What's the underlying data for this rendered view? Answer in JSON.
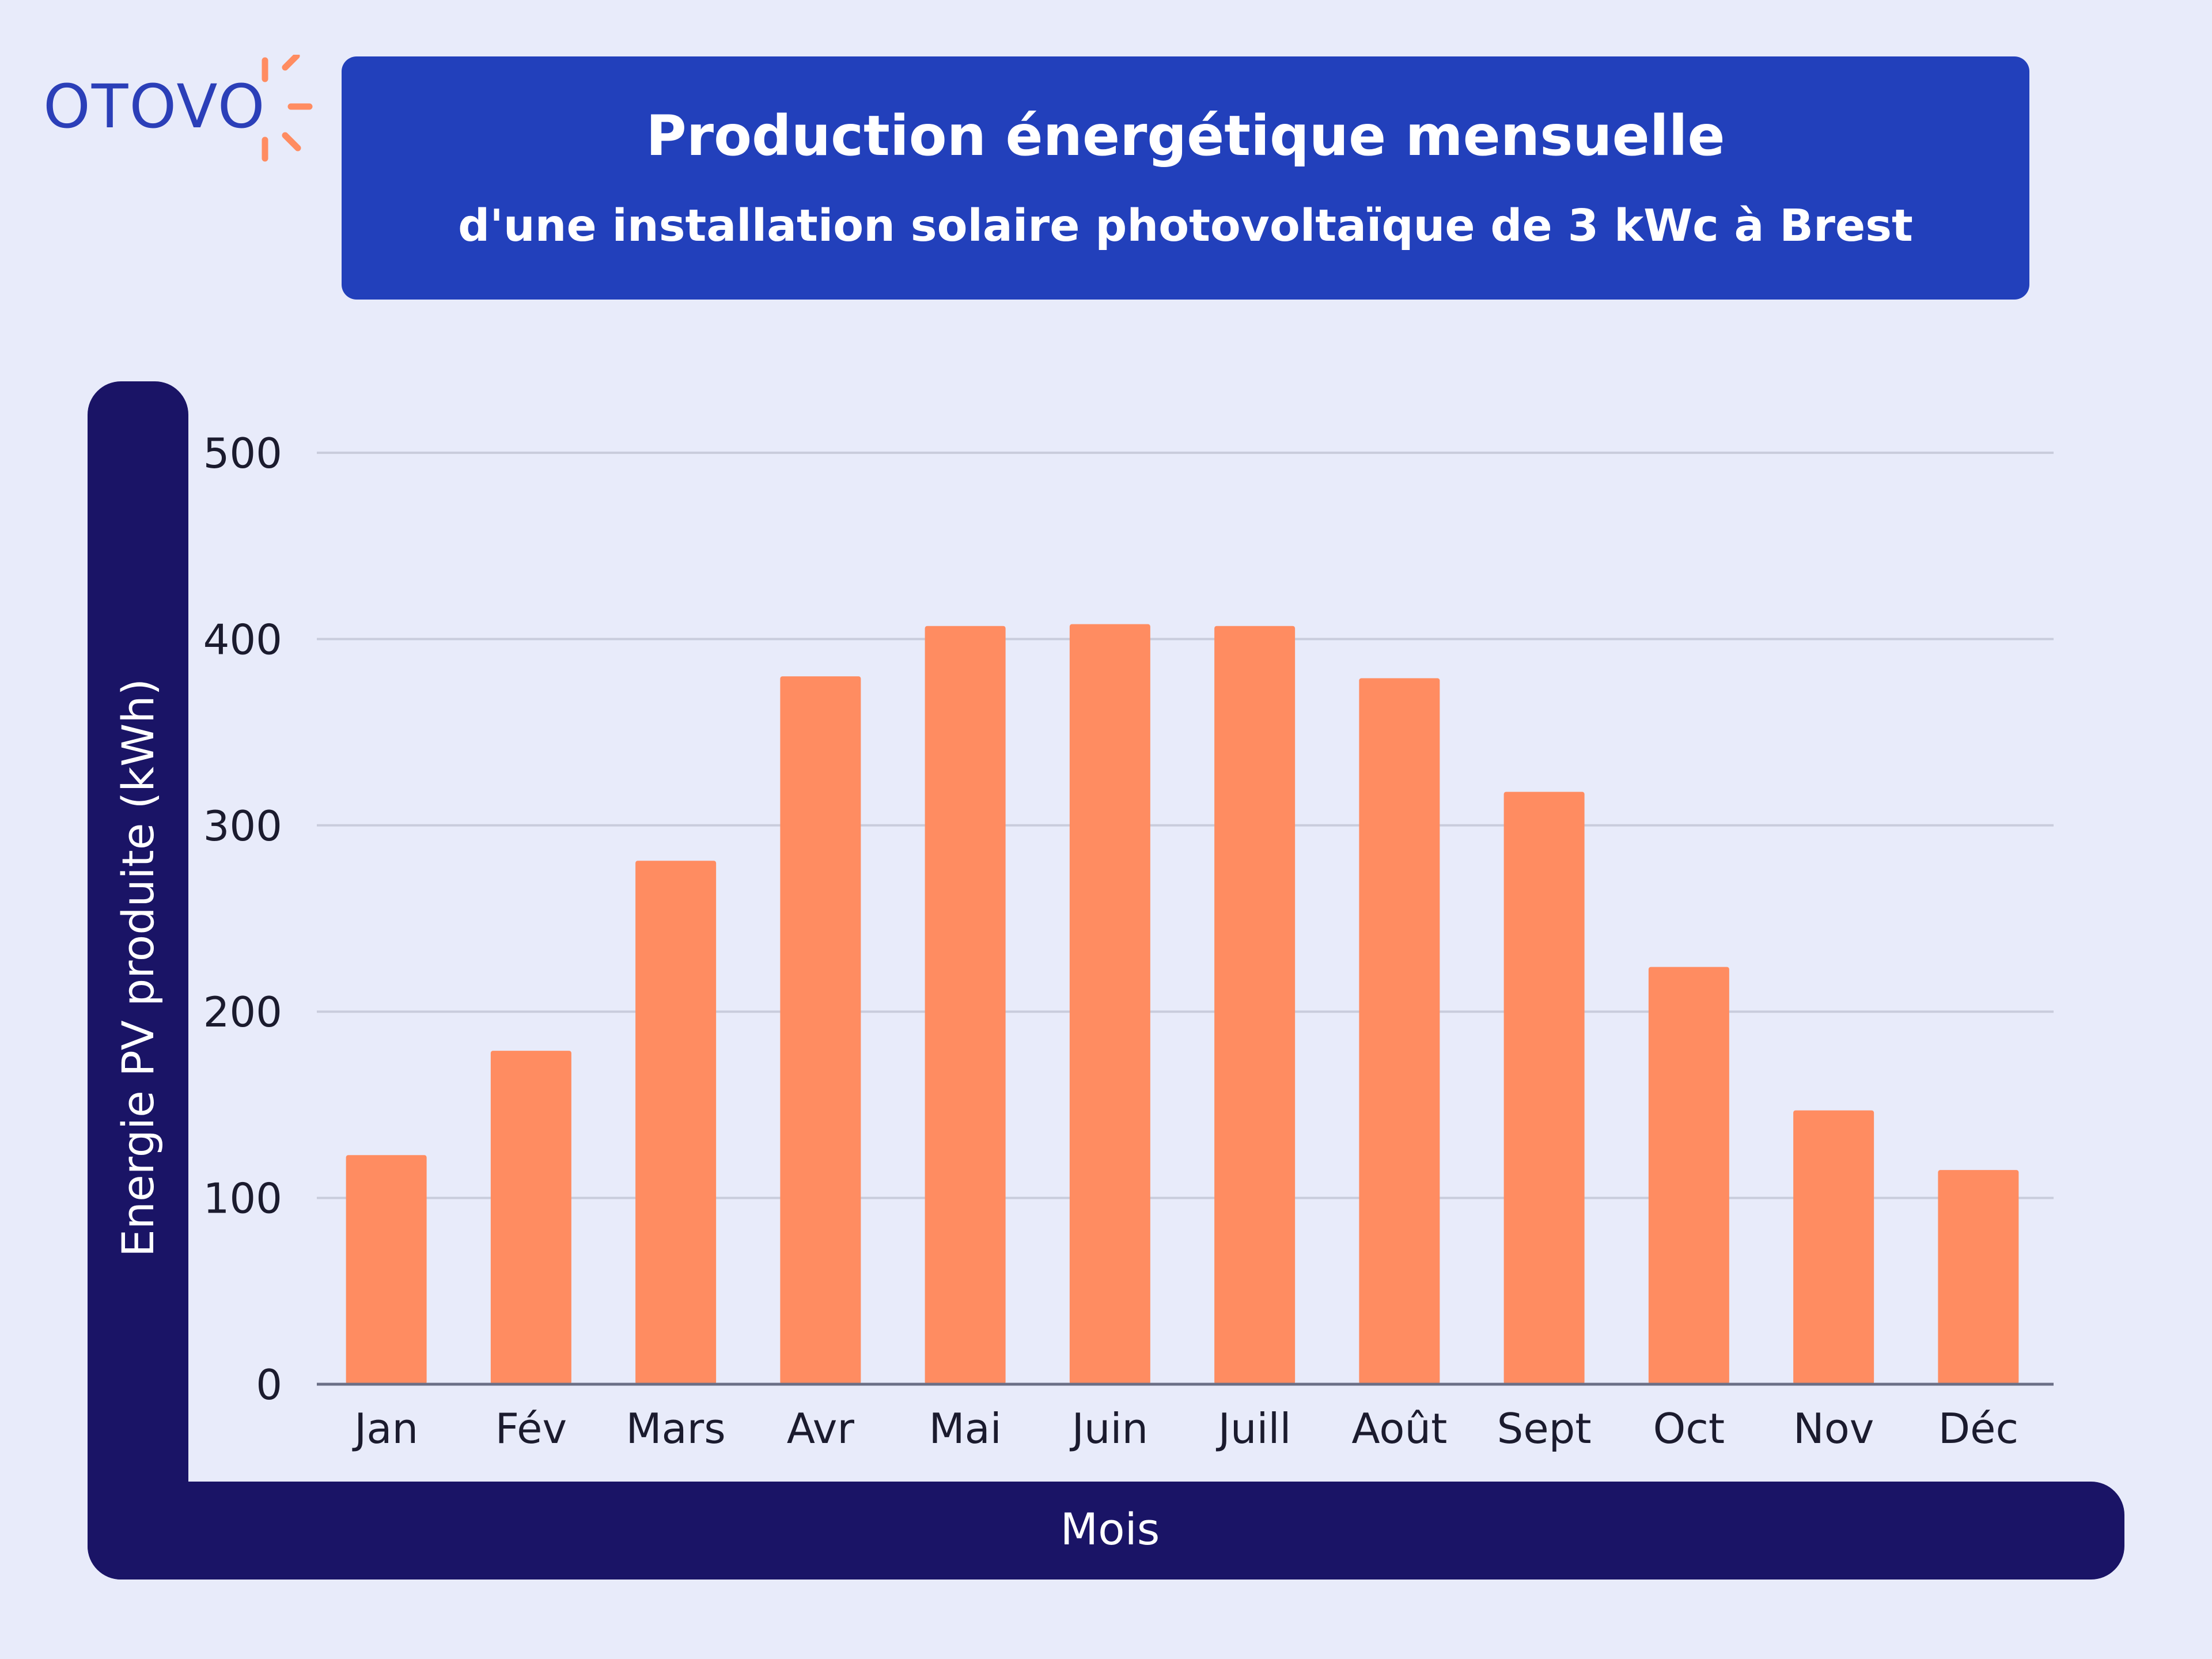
{
  "logo": {
    "text": "OTOVO",
    "icon": "sun-rays-icon"
  },
  "chart_data": {
    "type": "bar",
    "title": "Production énergétique mensuelle",
    "subtitle": "d'une installation solaire photovoltaïque de 3 kWc à Brest",
    "xlabel": "Mois",
    "ylabel": "Energie PV produite (kWh)",
    "ylim": [
      0,
      500
    ],
    "yticks": [
      0,
      100,
      200,
      300,
      400,
      500
    ],
    "grid": true,
    "categories": [
      "Jan",
      "Fév",
      "Mars",
      "Avr",
      "Mai",
      "Juin",
      "Juill",
      "Août",
      "Sept",
      "Oct",
      "Nov",
      "Déc"
    ],
    "values": [
      123,
      179,
      281,
      380,
      407,
      408,
      407,
      379,
      318,
      224,
      147,
      115
    ],
    "bar_color": "#ff8c61"
  },
  "colors": {
    "background": "#e8ebfa",
    "title_box": "#2240bb",
    "axis_band": "#1a1466",
    "logo_blue": "#2b3fb8",
    "logo_rays": "#ff8c61",
    "gridline": "#c9ccdc"
  }
}
